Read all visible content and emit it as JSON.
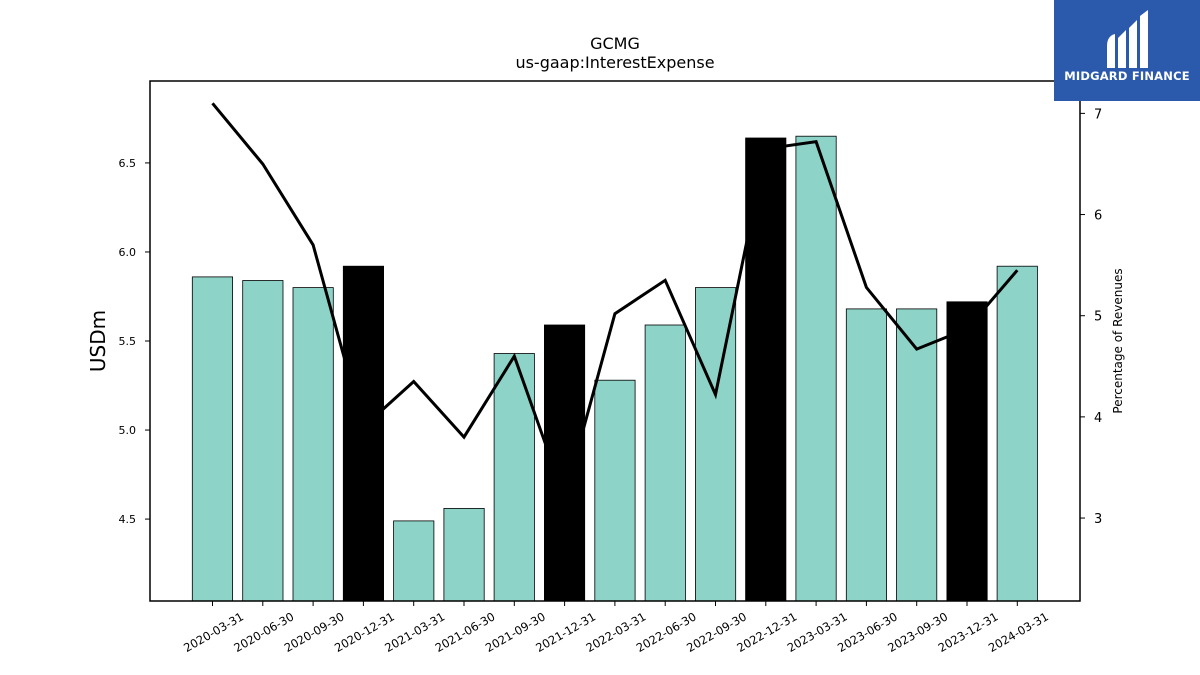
{
  "chart_data": {
    "type": "bar",
    "title": "GCMG",
    "subtitle": "us-gaap:InterestExpense",
    "ylabel": "USDm",
    "ylabel_right": "Percentage of Revenues",
    "categories": [
      "2020-03-31",
      "2020-06-30",
      "2020-09-30",
      "2020-12-31",
      "2021-03-31",
      "2021-06-30",
      "2021-09-30",
      "2021-12-31",
      "2022-03-31",
      "2022-06-30",
      "2022-09-30",
      "2022-12-31",
      "2023-03-31",
      "2023-06-30",
      "2023-09-30",
      "2023-12-31",
      "2024-03-31"
    ],
    "series": [
      {
        "type": "bar",
        "values": [
          5.86,
          5.84,
          5.8,
          5.92,
          4.49,
          4.56,
          5.43,
          5.59,
          5.28,
          5.59,
          5.8,
          6.64,
          6.65,
          5.68,
          5.68,
          5.72,
          5.92
        ],
        "colors": [
          "#8dd3c7",
          "#8dd3c7",
          "#8dd3c7",
          "#000000",
          "#8dd3c7",
          "#8dd3c7",
          "#8dd3c7",
          "#000000",
          "#8dd3c7",
          "#8dd3c7",
          "#8dd3c7",
          "#000000",
          "#8dd3c7",
          "#8dd3c7",
          "#8dd3c7",
          "#000000",
          "#8dd3c7"
        ]
      },
      {
        "type": "line",
        "axis": "right",
        "values": [
          7.1,
          6.5,
          5.7,
          3.9,
          4.35,
          3.8,
          4.6,
          3.2,
          5.02,
          5.35,
          4.22,
          6.65,
          6.72,
          5.28,
          4.67,
          4.87,
          5.45
        ],
        "color": "#000000"
      }
    ],
    "ylim": [
      4.04,
      6.96
    ],
    "yticks": [
      "4.5",
      "5.0",
      "5.5",
      "6.0",
      "6.5"
    ],
    "ylim_right": [
      2.18,
      7.32
    ],
    "yticks_right": [
      "3",
      "4",
      "5",
      "6",
      "7"
    ],
    "grid": false,
    "legend": "none",
    "colors": {
      "bar": "#8dd3c7",
      "highlight_bar": "#000000",
      "line": "#000000"
    }
  },
  "logo": {
    "text": "MIDGARD FINANCE",
    "background": "#2b5aad"
  }
}
